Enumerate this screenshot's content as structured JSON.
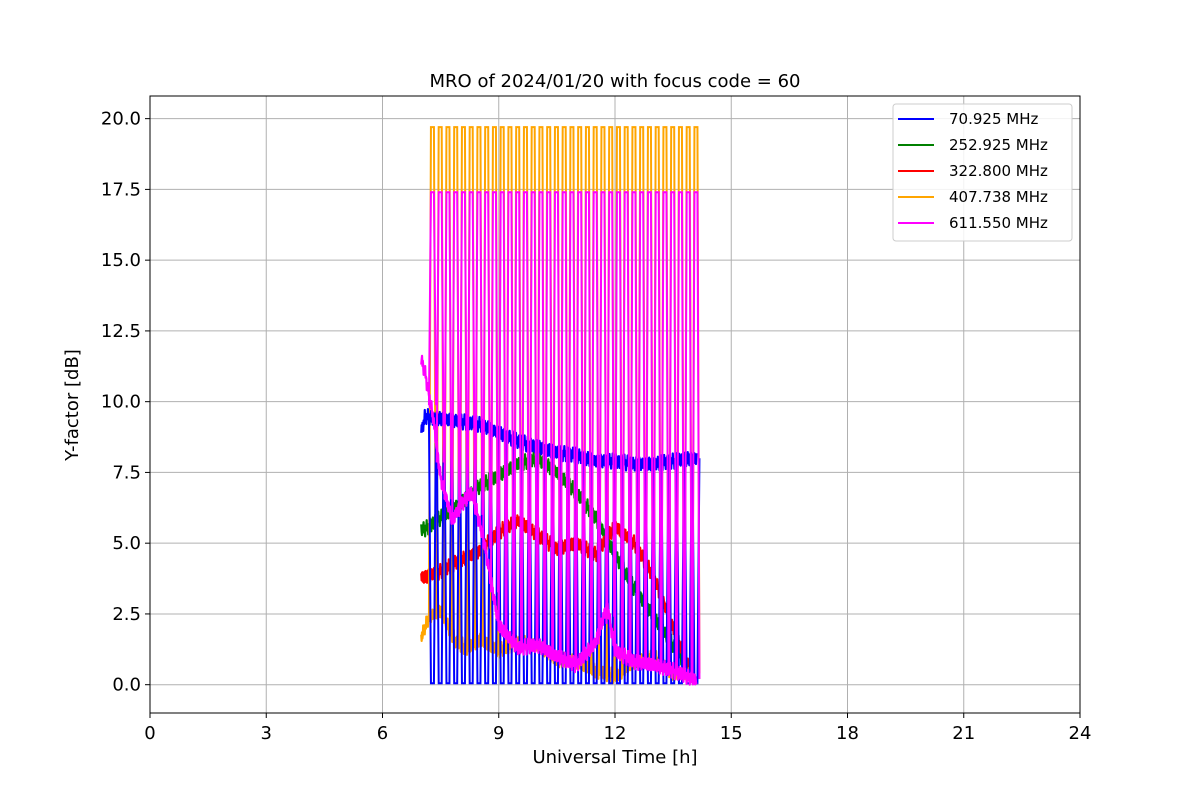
{
  "chart_data": {
    "type": "line",
    "title": "MRO of 2024/01/20 with focus code = 60",
    "xlabel": "Universal Time [h]",
    "ylabel": "Y-factor [dB]",
    "xlim": [
      0,
      24
    ],
    "ylim": [
      -1.0,
      20.8
    ],
    "xticks": [
      0,
      3,
      6,
      9,
      12,
      15,
      18,
      21,
      24
    ],
    "xtick_labels": [
      "0",
      "3",
      "6",
      "9",
      "12",
      "15",
      "18",
      "21",
      "24"
    ],
    "yticks": [
      0,
      2.5,
      5,
      7.5,
      10,
      12.5,
      15,
      17.5,
      20
    ],
    "ytick_labels": [
      "0.0",
      "2.5",
      "5.0",
      "7.5",
      "10.0",
      "12.5",
      "15.0",
      "17.5",
      "20.0"
    ],
    "grid": true,
    "legend_position": "top-right",
    "calibration_pulses": {
      "start": 7.25,
      "end": 14.05,
      "count": 35
    },
    "series": [
      {
        "name": " 70.925 MHz",
        "color": "#0000ff",
        "x": [
          7.0,
          7.1,
          7.3,
          7.5,
          8.0,
          8.5,
          9.0,
          9.5,
          10.0,
          10.5,
          11.0,
          11.5,
          12.0,
          12.5,
          13.0,
          13.5,
          14.0,
          14.1
        ],
        "y": [
          8.9,
          9.5,
          9.4,
          9.4,
          9.3,
          9.2,
          8.9,
          8.6,
          8.4,
          8.2,
          8.1,
          7.9,
          7.9,
          7.8,
          7.8,
          7.9,
          8.0,
          8.0
        ],
        "pulse_low": 0.05
      },
      {
        "name": "252.925 MHz",
        "color": "#008000",
        "x": [
          7.0,
          7.1,
          7.3,
          7.5,
          8.0,
          8.5,
          9.0,
          9.5,
          10.0,
          10.5,
          11.0,
          11.5,
          12.0,
          12.5,
          13.0,
          13.5,
          14.0
        ],
        "y": [
          5.5,
          5.5,
          5.7,
          5.9,
          6.4,
          7.0,
          7.4,
          7.8,
          8.0,
          7.5,
          6.8,
          5.9,
          4.6,
          3.4,
          2.4,
          1.4,
          0.4
        ]
      },
      {
        "name": "322.800 MHz",
        "color": "#ff0000",
        "x": [
          7.0,
          7.1,
          7.5,
          8.0,
          8.5,
          9.0,
          9.5,
          10.0,
          10.5,
          11.0,
          11.5,
          12.0,
          12.5,
          13.0,
          13.5,
          14.0
        ],
        "y": [
          3.8,
          3.8,
          4.0,
          4.4,
          4.7,
          5.4,
          5.8,
          5.3,
          4.8,
          5.0,
          4.6,
          5.6,
          5.0,
          3.8,
          2.0,
          0.3
        ]
      },
      {
        "name": "407.738 MHz",
        "color": "#ffa500",
        "x": [
          7.0,
          7.2,
          7.5,
          7.9,
          8.2,
          8.5,
          9.0,
          9.5,
          10.0,
          10.5,
          11.0,
          11.5,
          12.0,
          12.5,
          13.0,
          13.5,
          14.0
        ],
        "y": [
          1.7,
          2.4,
          2.6,
          1.5,
          1.3,
          1.6,
          1.2,
          1.5,
          1.4,
          0.9,
          0.8,
          0.5,
          0.3,
          0.8,
          1.0,
          0.4,
          0.4
        ],
        "pulse_high": 19.7
      },
      {
        "name": "611.550 MHz",
        "color": "#ff00ff",
        "x": [
          7.0,
          7.1,
          7.3,
          7.5,
          7.8,
          8.0,
          8.3,
          8.6,
          9.0,
          9.5,
          10.0,
          10.5,
          11.0,
          11.5,
          11.8,
          12.0,
          12.5,
          13.0,
          13.5,
          14.0,
          14.1
        ],
        "y": [
          11.5,
          11.0,
          9.5,
          7.3,
          5.8,
          6.3,
          6.8,
          5.2,
          2.1,
          1.3,
          1.4,
          1.0,
          0.7,
          1.5,
          2.8,
          1.2,
          0.8,
          0.7,
          0.5,
          0.2,
          0.2
        ],
        "pulse_high": 17.4
      }
    ]
  }
}
